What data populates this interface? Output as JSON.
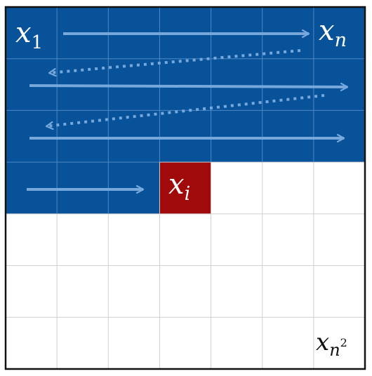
{
  "grid": {
    "rows": 7,
    "cols": 7,
    "filled_full_rows": 3,
    "filled_partial_row_cells": 3,
    "current_cell": {
      "row": 3,
      "col": 3
    }
  },
  "labels": {
    "first": {
      "base": "x",
      "sub": "1"
    },
    "row_end": {
      "base": "x",
      "sub": "n"
    },
    "current": {
      "base": "x",
      "sub": "i"
    },
    "last": {
      "base": "x",
      "sub": "n",
      "sup": "2"
    }
  },
  "colors": {
    "filled": "#08529a",
    "current": "#a10a0a",
    "empty": "#ffffff",
    "grid_line_on_filled": "#4f88c4",
    "grid_line_on_empty": "#cfcfcf",
    "arrow": "#76a8dc",
    "border": "#111111",
    "label_on_dark": "#ffffff",
    "label_on_light": "#111111"
  }
}
